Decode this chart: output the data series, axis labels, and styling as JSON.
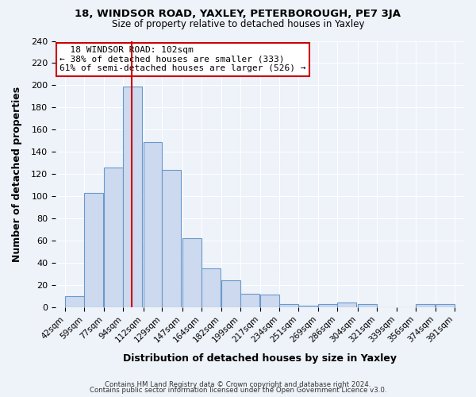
{
  "title1": "18, WINDSOR ROAD, YAXLEY, PETERBOROUGH, PE7 3JA",
  "title2": "Size of property relative to detached houses in Yaxley",
  "xlabel": "Distribution of detached houses by size in Yaxley",
  "ylabel": "Number of detached properties",
  "bin_left_edges": [
    42,
    59,
    77,
    94,
    112,
    129,
    147,
    164,
    182,
    199,
    217,
    234,
    251,
    269,
    286,
    304,
    321,
    339,
    356,
    374
  ],
  "bin_labels": [
    "42sqm",
    "59sqm",
    "77sqm",
    "94sqm",
    "112sqm",
    "129sqm",
    "147sqm",
    "164sqm",
    "182sqm",
    "199sqm",
    "217sqm",
    "234sqm",
    "251sqm",
    "269sqm",
    "286sqm",
    "304sqm",
    "321sqm",
    "339sqm",
    "356sqm",
    "374sqm",
    "391sqm"
  ],
  "bar_values": [
    10,
    103,
    126,
    199,
    149,
    124,
    62,
    35,
    24,
    12,
    11,
    3,
    1,
    3,
    4,
    3,
    0,
    0,
    3,
    3
  ],
  "bar_color": "#ccd9ee",
  "bar_edge_color": "#6b99cc",
  "red_line_x": 102,
  "annotation_title": "18 WINDSOR ROAD: 102sqm",
  "annotation_line1": "← 38% of detached houses are smaller (333)",
  "annotation_line2": "61% of semi-detached houses are larger (526) →",
  "annotation_box_color": "#ffffff",
  "annotation_box_edge": "#cc0000",
  "red_line_color": "#cc0000",
  "ylim": [
    0,
    240
  ],
  "yticks": [
    0,
    20,
    40,
    60,
    80,
    100,
    120,
    140,
    160,
    180,
    200,
    220,
    240
  ],
  "footer1": "Contains HM Land Registry data © Crown copyright and database right 2024.",
  "footer2": "Contains public sector information licensed under the Open Government Licence v3.0.",
  "background_color": "#eef2f9",
  "grid_color": "#ffffff"
}
